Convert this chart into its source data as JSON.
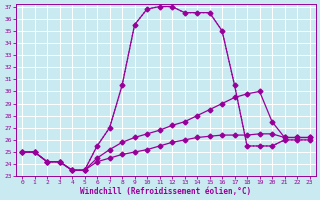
{
  "xlabel": "Windchill (Refroidissement éolien,°C)",
  "background_color": "#c8eaf0",
  "grid_color": "#ffffff",
  "line_color": "#990099",
  "xlim": [
    -0.5,
    23.5
  ],
  "ylim": [
    23,
    37.2
  ],
  "xticks": [
    0,
    1,
    2,
    3,
    4,
    5,
    6,
    7,
    8,
    9,
    10,
    11,
    12,
    13,
    14,
    15,
    16,
    17,
    18,
    19,
    20,
    21,
    22,
    23
  ],
  "yticks": [
    23,
    24,
    25,
    26,
    27,
    28,
    29,
    30,
    31,
    32,
    33,
    34,
    35,
    36,
    37
  ],
  "series": [
    {
      "x": [
        0,
        1,
        2,
        3,
        4,
        5,
        6,
        7,
        8,
        9,
        10,
        11,
        12,
        13,
        14,
        15,
        16,
        17,
        18,
        19,
        20,
        21,
        22,
        23
      ],
      "y": [
        25,
        25,
        24.2,
        24.2,
        23.5,
        23.5,
        25.5,
        27.0,
        30.5,
        35.5,
        36.8,
        37.0,
        37.0,
        36.5,
        36.5,
        36.5,
        35.0,
        30.5,
        25.5,
        25.5,
        25.5,
        26.0,
        26.0,
        26.0
      ],
      "linestyle": ":",
      "marker": "None",
      "markersize": 0,
      "linewidth": 0.9
    },
    {
      "x": [
        0,
        1,
        2,
        3,
        4,
        5,
        6,
        7,
        8,
        9,
        10,
        11,
        12,
        13,
        14,
        15,
        16,
        17,
        18,
        19,
        20,
        21,
        22,
        23
      ],
      "y": [
        25,
        25,
        24.2,
        24.2,
        23.5,
        23.5,
        25.5,
        27.0,
        30.5,
        35.5,
        36.8,
        37.0,
        37.0,
        36.5,
        36.5,
        36.5,
        35.0,
        30.5,
        25.5,
        25.5,
        25.5,
        26.0,
        26.0,
        26.0
      ],
      "linestyle": "-",
      "marker": "D",
      "markersize": 2.5,
      "linewidth": 0.9
    },
    {
      "x": [
        0,
        1,
        2,
        3,
        4,
        5,
        6,
        7,
        8,
        9,
        10,
        11,
        12,
        13,
        14,
        15,
        16,
        17,
        18,
        19,
        20,
        21,
        22,
        23
      ],
      "y": [
        25,
        25,
        24.2,
        24.2,
        23.5,
        23.5,
        24.5,
        25.2,
        25.8,
        26.2,
        26.5,
        26.8,
        27.2,
        27.5,
        28.0,
        28.5,
        29.0,
        29.5,
        29.8,
        30.0,
        27.5,
        26.2,
        26.2,
        26.2
      ],
      "linestyle": "-",
      "marker": "D",
      "markersize": 2.5,
      "linewidth": 0.9
    },
    {
      "x": [
        0,
        1,
        2,
        3,
        4,
        5,
        6,
        7,
        8,
        9,
        10,
        11,
        12,
        13,
        14,
        15,
        16,
        17,
        18,
        19,
        20,
        21,
        22,
        23
      ],
      "y": [
        25,
        25,
        24.2,
        24.2,
        23.5,
        23.5,
        24.2,
        24.5,
        24.8,
        25.0,
        25.2,
        25.5,
        25.8,
        26.0,
        26.2,
        26.3,
        26.4,
        26.4,
        26.4,
        26.5,
        26.5,
        26.2,
        26.2,
        26.2
      ],
      "linestyle": "-",
      "marker": "D",
      "markersize": 2.5,
      "linewidth": 0.9
    }
  ]
}
